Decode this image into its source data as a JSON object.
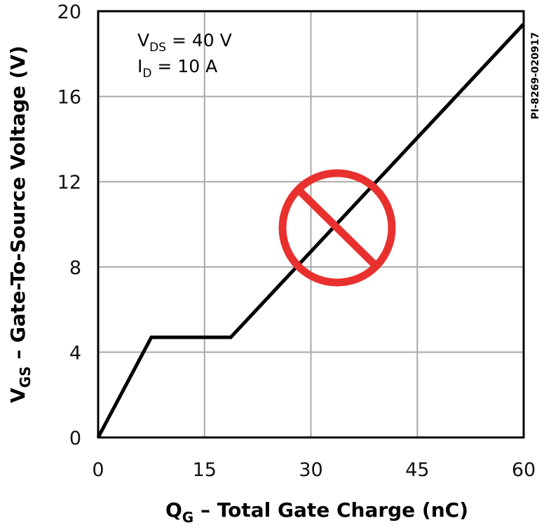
{
  "chart_data": {
    "type": "line",
    "xlabel": {
      "main": "Q",
      "sub": "G",
      "rest": " – Total Gate Charge (nC)"
    },
    "ylabel": {
      "main": "V",
      "sub": "GS",
      "rest": " – Gate-To-Source Voltage (V)"
    },
    "xlim": [
      0,
      60
    ],
    "ylim": [
      0,
      20
    ],
    "x_ticks": [
      0,
      15,
      30,
      45,
      60
    ],
    "y_ticks": [
      0,
      4,
      8,
      12,
      16,
      20
    ],
    "grid": true,
    "conditions": [
      {
        "main": "V",
        "sub": "DS",
        "rest": " = 40 V"
      },
      {
        "main": "I",
        "sub": "D",
        "rest": " = 10 A"
      }
    ],
    "figure_id": "PI-8269-020917",
    "series": [
      {
        "x": [
          0,
          7.5,
          18.7,
          60
        ],
        "y": [
          0,
          4.7,
          4.7,
          19.4
        ]
      }
    ],
    "overlay": "prohibition-sign"
  },
  "colors": {
    "line": "#000000",
    "grid": "#a8a8a8",
    "frame": "#000000",
    "prohibition": "#e8312f"
  }
}
